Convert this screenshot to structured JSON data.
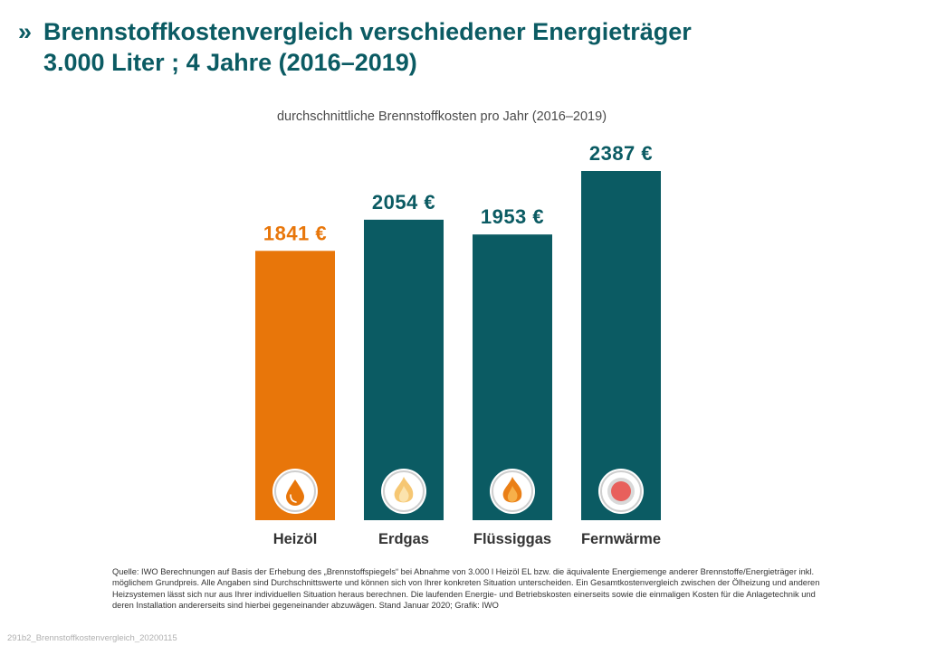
{
  "header": {
    "marker": "»",
    "title_line1": "Brennstoffkostenvergleich verschiedener Energieträger",
    "title_line2": "3.000 Liter ; 4 Jahre (2016–2019)"
  },
  "colors": {
    "accent_orange": "#e8760a",
    "teal": "#0b5b63",
    "title_teal": "#0b5b63",
    "icon_circle": "#ffffff",
    "icon_ring": "#c8c8c8",
    "fernwaerme_dot": "#e8605c"
  },
  "chart_data": {
    "type": "bar",
    "title": "durchschnittliche Brennstoffkosten pro Jahr (2016–2019)",
    "categories": [
      "Heizöl",
      "Erdgas",
      "Flüssiggas",
      "Fernwärme"
    ],
    "values": [
      1841,
      2054,
      1953,
      2387
    ],
    "value_labels": [
      "1841 €",
      "2054 €",
      "1953 €",
      "2387 €"
    ],
    "unit": "€",
    "bar_colors": [
      "#e8760a",
      "#0b5b63",
      "#0b5b63",
      "#0b5b63"
    ],
    "label_colors": [
      "#e8760a",
      "#0b5b63",
      "#0b5b63",
      "#0b5b63"
    ],
    "icons": [
      "oil-drop-icon",
      "gas-flame-icon",
      "lpg-flame-icon",
      "district-heating-icon"
    ],
    "ylim": [
      0,
      2387
    ],
    "grid": false,
    "legend": "none"
  },
  "footnote": "Quelle: IWO Berechnungen auf Basis der Erhebung des „Brennstoffspiegels“ bei Abnahme von 3.000 l Heizöl EL bzw. die äquivalente Energiemenge anderer Brennstoffe/Energieträger inkl. möglichem Grundpreis. Alle Angaben sind Durchschnittswerte und können sich von Ihrer konkreten Situation unterscheiden. Ein Gesamtkostenvergleich zwischen der Ölheizung und anderen Heizsystemen lässt sich nur aus Ihrer individuellen Situation heraus berechnen. Die laufenden Energie- und Betriebskosten einerseits sowie die einmaligen Kosten für die Anlagetechnik und deren Installation andererseits sind hierbei gegeneinander abzuwägen. Stand Januar 2020; Grafik: IWO",
  "file_ref": "291b2_Brennstoffkostenvergleich_20200115"
}
